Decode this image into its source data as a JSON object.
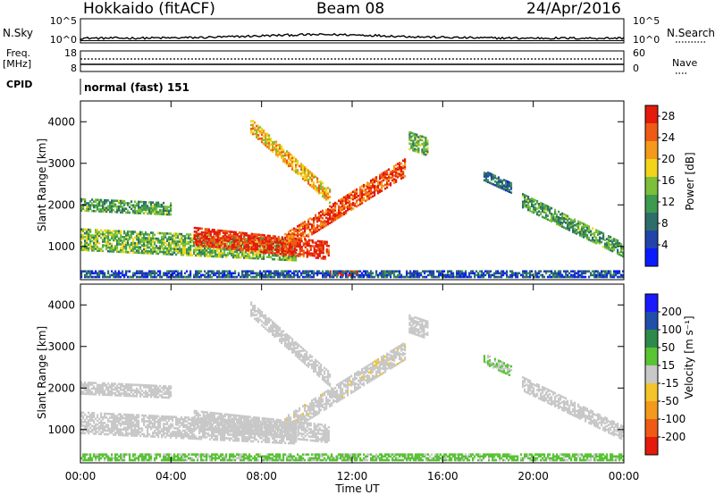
{
  "header": {
    "station": "Hokkaido (fitACF)",
    "beam": "Beam 08",
    "date": "24/Apr/2016"
  },
  "top_panels": {
    "nsky_label": "N.Sky",
    "nsky_ticks": [
      "10^5",
      "10^0"
    ],
    "nsearch_label": "N.Search",
    "nsearch_ticks": [
      "10^5",
      "10^0"
    ],
    "freq_label_1": "Freq.",
    "freq_label_2": "[MHz]",
    "freq_ticks": [
      "18",
      "8"
    ],
    "nave_label": "Nave",
    "nave_ticks": [
      "60",
      "0"
    ],
    "cpid_label": "CPID",
    "cpid_value": "normal (fast) 151"
  },
  "chart_data": [
    {
      "type": "heatmap",
      "name": "power",
      "ylabel": "Slant Range [km]",
      "yticks": [
        "1000",
        "2000",
        "3000",
        "4000"
      ],
      "ylim": [
        200,
        4500
      ],
      "xlim": [
        0,
        24
      ],
      "colorbar_label": "Power [dB]",
      "colorbar_ticks": [
        "4",
        "8",
        "12",
        "16",
        "20",
        "24",
        "28"
      ],
      "colorbar_range": [
        0,
        30
      ],
      "colors": [
        "#0a1cff",
        "#2244aa",
        "#2e6e6a",
        "#3d9a4e",
        "#7bbf3a",
        "#f2d41a",
        "#f39a1c",
        "#ef5b14",
        "#e41a0c"
      ],
      "features": [
        {
          "t0": 0.0,
          "t1": 9.5,
          "r_start": 1150,
          "r_end": 900,
          "width": 500,
          "value": 14
        },
        {
          "t0": 5.0,
          "t1": 11.0,
          "r_start": 1250,
          "r_end": 900,
          "width": 450,
          "value": 28
        },
        {
          "t0": 9.0,
          "t1": 14.3,
          "r_start": 1100,
          "r_end": 2900,
          "width": 450,
          "value": 26
        },
        {
          "t0": 0.0,
          "t1": 4.0,
          "r_start": 2000,
          "r_end": 1900,
          "width": 300,
          "value": 12
        },
        {
          "t0": 7.5,
          "t1": 11.0,
          "r_start": 3900,
          "r_end": 2200,
          "width": 350,
          "value": 20
        },
        {
          "t0": 14.5,
          "t1": 15.3,
          "r_start": 3550,
          "r_end": 3400,
          "width": 450,
          "value": 14
        },
        {
          "t0": 19.5,
          "t1": 24.0,
          "r_start": 2100,
          "r_end": 900,
          "width": 350,
          "value": 12
        },
        {
          "t0": 17.8,
          "t1": 19.0,
          "r_start": 2700,
          "r_end": 2400,
          "width": 250,
          "value": 8
        },
        {
          "t0": 11.0,
          "t1": 12.2,
          "r_start": 350,
          "r_end": 350,
          "width": 120,
          "value": 28
        },
        {
          "t0": 0.0,
          "t1": 24.0,
          "r_start": 330,
          "r_end": 330,
          "width": 160,
          "value": 6
        }
      ]
    },
    {
      "type": "heatmap",
      "name": "velocity",
      "ylabel": "Slant Range [km]",
      "yticks": [
        "1000",
        "2000",
        "3000",
        "4000"
      ],
      "ylim": [
        200,
        4500
      ],
      "xlim": [
        0,
        24
      ],
      "xticks": [
        "00:00",
        "04:00",
        "08:00",
        "12:00",
        "16:00",
        "20:00",
        "00:00"
      ],
      "xlabel": "Time UT",
      "colorbar_label": "Velocity [m s⁻¹]",
      "colorbar_ticks": [
        "200",
        "100",
        "50",
        "15",
        "-15",
        "-50",
        "-100",
        "-200"
      ],
      "colorbar_range": [
        -250,
        250
      ],
      "colors": [
        "#1a1aff",
        "#1f4faa",
        "#2d8a4a",
        "#58c434",
        "#c8c8c8",
        "#f2c42a",
        "#f39a1c",
        "#ef5b14",
        "#e41a0c"
      ],
      "features": [
        {
          "t0": 0.0,
          "t1": 9.5,
          "r_start": 1150,
          "r_end": 900,
          "width": 500,
          "value": 0
        },
        {
          "t0": 5.0,
          "t1": 11.0,
          "r_start": 1250,
          "r_end": 900,
          "width": 450,
          "value": -5
        },
        {
          "t0": 9.0,
          "t1": 14.3,
          "r_start": 1100,
          "r_end": 2900,
          "width": 450,
          "value": -10
        },
        {
          "t0": 0.0,
          "t1": 4.0,
          "r_start": 2000,
          "r_end": 1900,
          "width": 300,
          "value": 0
        },
        {
          "t0": 7.5,
          "t1": 11.0,
          "r_start": 3900,
          "r_end": 2200,
          "width": 350,
          "value": 0
        },
        {
          "t0": 14.5,
          "t1": 15.3,
          "r_start": 3550,
          "r_end": 3400,
          "width": 450,
          "value": 0
        },
        {
          "t0": 19.5,
          "t1": 24.0,
          "r_start": 2100,
          "r_end": 900,
          "width": 350,
          "value": 0
        },
        {
          "t0": 17.8,
          "t1": 19.0,
          "r_start": 2700,
          "r_end": 2400,
          "width": 250,
          "value": 30
        },
        {
          "t0": 11.0,
          "t1": 12.2,
          "r_start": 350,
          "r_end": 350,
          "width": 120,
          "value": 0
        },
        {
          "t0": 0.0,
          "t1": 24.0,
          "r_start": 330,
          "r_end": 330,
          "width": 160,
          "value": 40
        }
      ]
    }
  ]
}
